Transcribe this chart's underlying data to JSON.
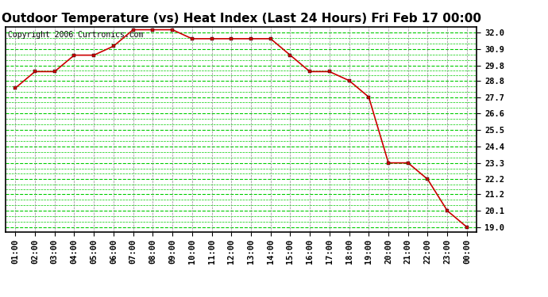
{
  "title": "Outdoor Temperature (vs) Heat Index (Last 24 Hours) Fri Feb 17 00:00",
  "copyright": "Copyright 2006 Curtronics.com",
  "x_labels": [
    "01:00",
    "02:00",
    "03:00",
    "04:00",
    "05:00",
    "06:00",
    "07:00",
    "08:00",
    "09:00",
    "10:00",
    "11:00",
    "12:00",
    "13:00",
    "14:00",
    "15:00",
    "16:00",
    "17:00",
    "18:00",
    "19:00",
    "20:00",
    "21:00",
    "22:00",
    "23:00",
    "00:00"
  ],
  "y_values": [
    28.3,
    29.4,
    29.4,
    30.5,
    30.5,
    31.1,
    32.2,
    32.2,
    32.2,
    31.6,
    31.6,
    31.6,
    31.6,
    31.6,
    30.5,
    29.4,
    29.4,
    28.8,
    27.7,
    23.3,
    23.3,
    22.2,
    20.1,
    19.0
  ],
  "y_ticks": [
    19.0,
    20.1,
    21.2,
    22.2,
    23.3,
    24.4,
    25.5,
    26.6,
    27.7,
    28.8,
    29.8,
    30.9,
    32.0
  ],
  "y_tick_labels": [
    "19.0",
    "20.1",
    "21.2",
    "22.2",
    "23.3",
    "24.4",
    "25.5",
    "26.6",
    "27.7",
    "28.8",
    "29.8",
    "30.9",
    "32.0"
  ],
  "line_color": "#cc0000",
  "marker": "s",
  "marker_size": 2.5,
  "bg_color": "#ffffff",
  "plot_bg_color": "#ffffff",
  "grid_major_color": "#00cc00",
  "grid_minor_color": "#888888",
  "title_fontsize": 11,
  "tick_fontsize": 7.5,
  "copyright_fontsize": 7
}
